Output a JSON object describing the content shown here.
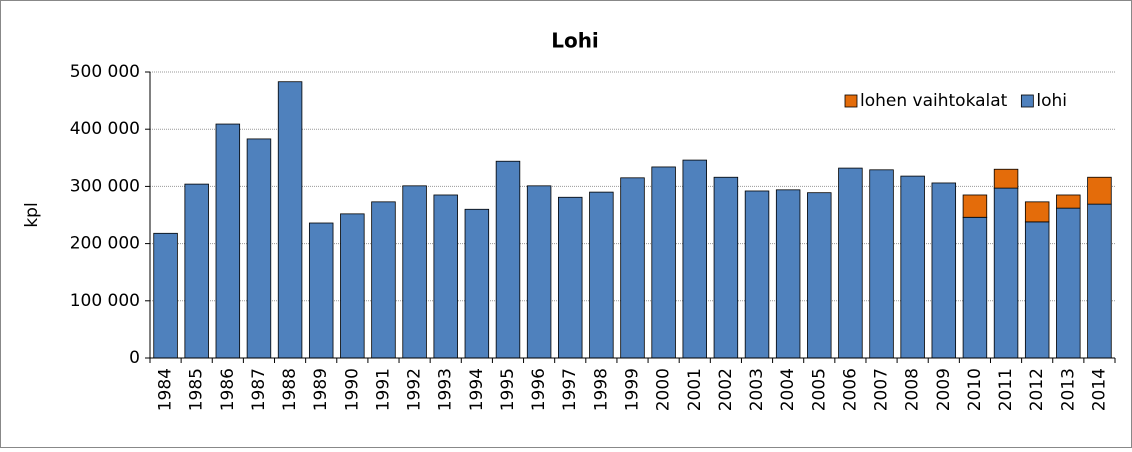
{
  "chart_data": {
    "type": "stacked_bar",
    "title": "Lohi",
    "y_label": "kpl",
    "categories": [
      "1984",
      "1985",
      "1986",
      "1987",
      "1988",
      "1989",
      "1990",
      "1991",
      "1992",
      "1993",
      "1994",
      "1995",
      "1996",
      "1997",
      "1998",
      "1999",
      "2000",
      "2001",
      "2002",
      "2003",
      "2004",
      "2005",
      "2006",
      "2007",
      "2008",
      "2009",
      "2010",
      "2011",
      "2012",
      "2013",
      "2014"
    ],
    "series": [
      {
        "name": "lohi",
        "color": "#4f81bd",
        "values": [
          218000,
          304000,
          409000,
          383000,
          483000,
          236000,
          252000,
          273000,
          301000,
          285000,
          260000,
          344000,
          301000,
          281000,
          290000,
          315000,
          334000,
          346000,
          316000,
          292000,
          294000,
          289000,
          332000,
          329000,
          318000,
          306000,
          246000,
          297000,
          238000,
          262000,
          269000
        ]
      },
      {
        "name": "lohen vaihtokalat",
        "color": "#e46c0a",
        "values": [
          null,
          null,
          null,
          null,
          null,
          null,
          null,
          null,
          null,
          null,
          null,
          null,
          null,
          null,
          null,
          null,
          null,
          null,
          null,
          null,
          null,
          null,
          null,
          null,
          null,
          null,
          39000,
          33000,
          35000,
          23000,
          47000
        ]
      }
    ],
    "ylim": [
      0,
      500000
    ],
    "yticks": [
      0,
      {
        "value": 100000,
        "label": "100 000"
      },
      {
        "value": 200000,
        "label": "200 000"
      },
      {
        "value": 300000,
        "label": "300 000"
      },
      {
        "value": 400000,
        "label": "400 000"
      },
      {
        "value": 500000,
        "label": "500 000"
      }
    ],
    "grid": true,
    "legend": "top-right"
  }
}
